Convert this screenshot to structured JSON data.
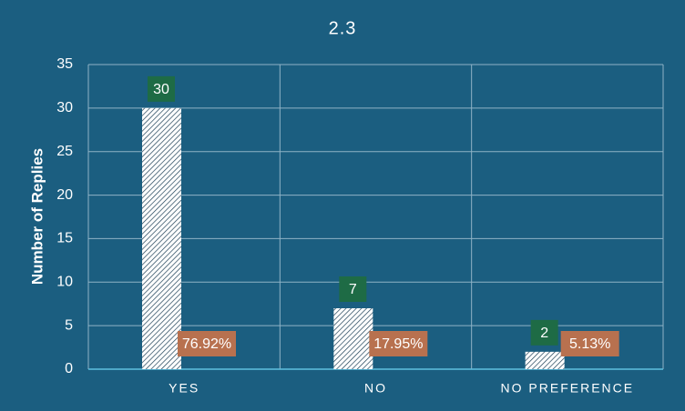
{
  "chart_data": {
    "type": "bar",
    "title": "2.3",
    "y_label": "Number of Replies",
    "categories": [
      "YES",
      "NO",
      "NO PREFERENCE"
    ],
    "values": [
      30,
      7,
      2
    ],
    "percent_labels": [
      "76.92%",
      "17.95%",
      "5.13%"
    ],
    "ylim": [
      0,
      35
    ],
    "yticks": [
      0,
      5,
      10,
      15,
      20,
      25,
      30,
      35
    ],
    "grid": true,
    "color": "#ffffff",
    "label_color": "#1e6b45",
    "percent_color": "#b8714f"
  }
}
